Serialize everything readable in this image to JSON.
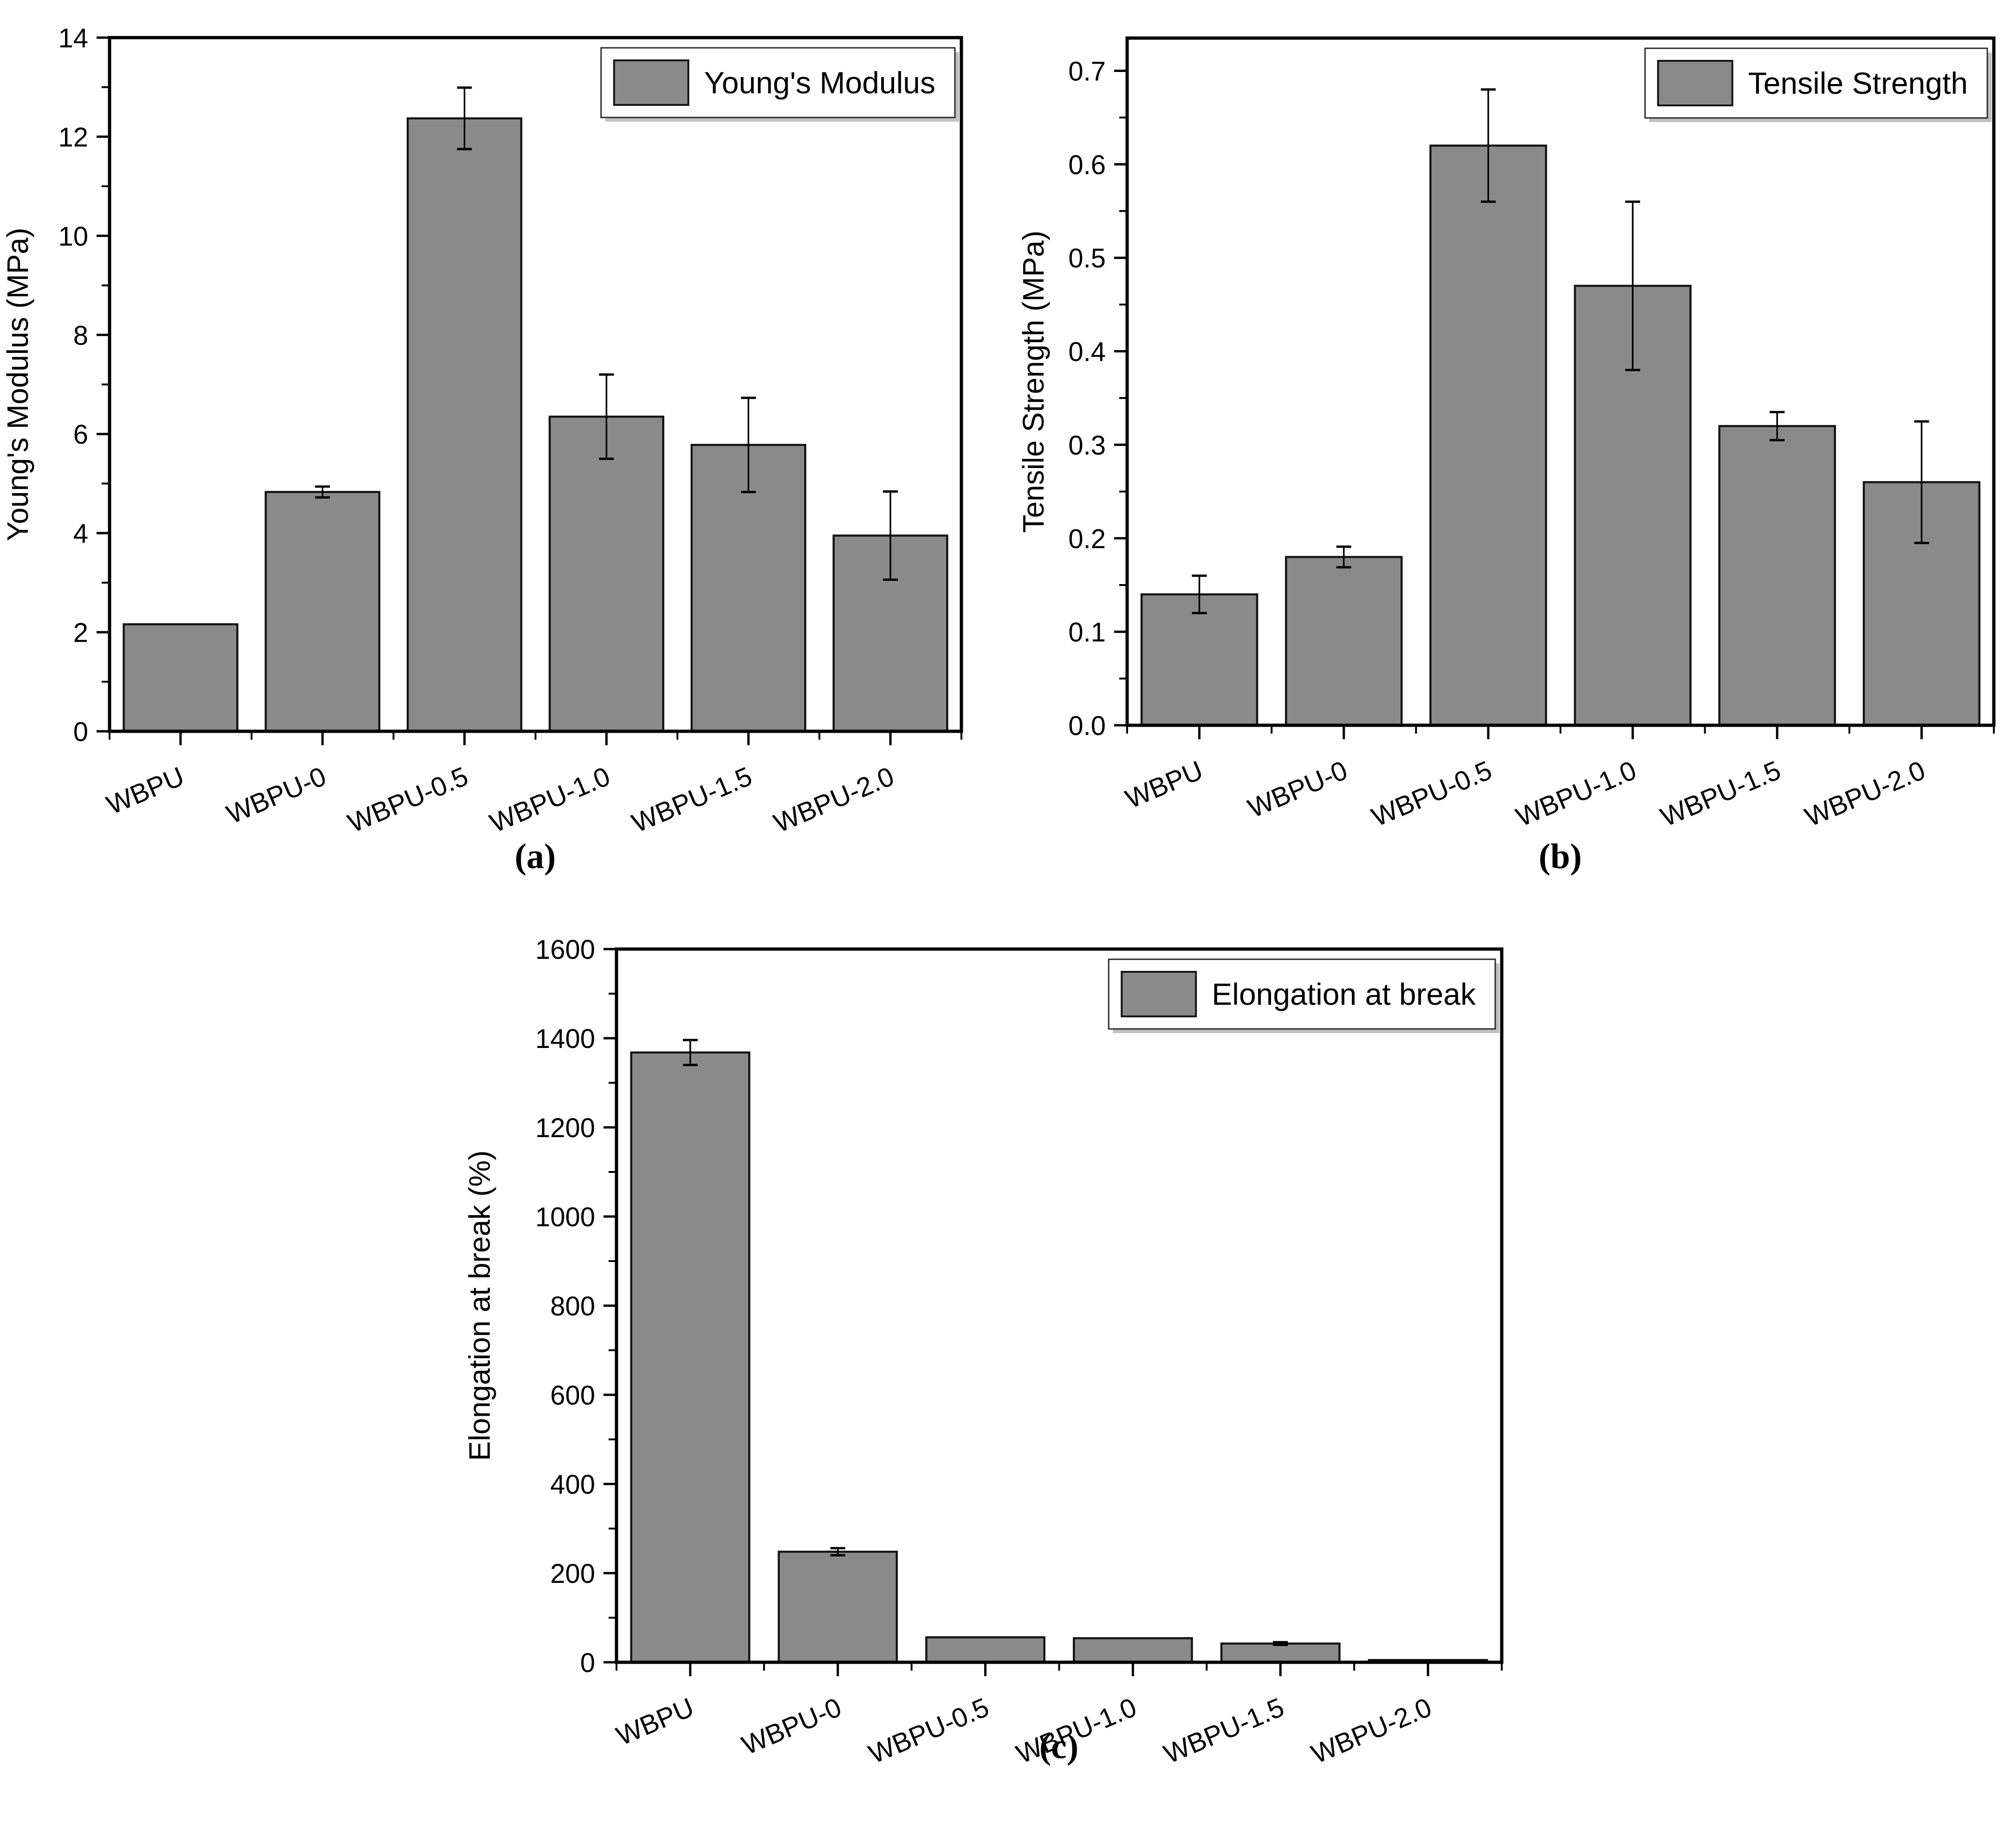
{
  "figure": {
    "background": "#ffffff",
    "colors": {
      "bar_fill": "#8a8a8a",
      "bar_stroke": "#141414",
      "axis": "#000000",
      "text": "#000000",
      "legend_border": "#2b2b2b",
      "legend_shadow": "#c0c0c0",
      "legend_background": "#ffffff"
    }
  },
  "chart_data": [
    {
      "type": "bar",
      "panel_label": "(a)",
      "legend_label": "Young's Modulus",
      "title": "",
      "xlabel": "",
      "ylabel": "Young's Modulus (MPa)",
      "categories": [
        "WBPU",
        "WBPU-0",
        "WBPU-0.5",
        "WBPU-1.0",
        "WBPU-1.5",
        "WBPU-2.0"
      ],
      "values": [
        2.16,
        4.83,
        12.37,
        6.35,
        5.78,
        3.95
      ],
      "errors": [
        0,
        0.11,
        0.62,
        0.85,
        0.95,
        0.89
      ],
      "ylim": [
        0,
        14
      ],
      "ytick_step": 2,
      "yminor_step": 1,
      "ytick_labels": [
        "0",
        "2",
        "4",
        "6",
        "8",
        "10",
        "12",
        "14"
      ],
      "legend_position": "top-right",
      "grid": false
    },
    {
      "type": "bar",
      "panel_label": "(b)",
      "legend_label": "Tensile Strength",
      "title": "",
      "xlabel": "",
      "ylabel": "Tensile Strength (MPa)",
      "categories": [
        "WBPU",
        "WBPU-0",
        "WBPU-0.5",
        "WBPU-1.0",
        "WBPU-1.5",
        "WBPU-2.0"
      ],
      "values": [
        0.14,
        0.18,
        0.62,
        0.47,
        0.32,
        0.26
      ],
      "errors": [
        0.02,
        0.011,
        0.06,
        0.09,
        0.015,
        0.065
      ],
      "ylim": [
        0,
        0.735
      ],
      "ytick_step": 0.1,
      "yminor_step": 0.05,
      "ytick_labels": [
        "0.0",
        "0.1",
        "0.2",
        "0.3",
        "0.4",
        "0.5",
        "0.6",
        "0.7"
      ],
      "legend_position": "top-right",
      "grid": false
    },
    {
      "type": "bar",
      "panel_label": "(c)",
      "legend_label": "Elongation at break",
      "title": "",
      "xlabel": "",
      "ylabel": "Elongation at break (%)",
      "categories": [
        "WBPU",
        "WBPU-0",
        "WBPU-0.5",
        "WBPU-1.0",
        "WBPU-1.5",
        "WBPU-2.0"
      ],
      "values": [
        1368,
        248,
        56,
        54,
        42,
        5
      ],
      "errors": [
        28,
        8,
        0,
        0,
        3,
        0
      ],
      "ylim": [
        0,
        1600
      ],
      "ytick_step": 200,
      "yminor_step": 100,
      "ytick_labels": [
        "0",
        "200",
        "400",
        "600",
        "800",
        "1000",
        "1200",
        "1400",
        "1600"
      ],
      "legend_position": "top-right",
      "grid": false
    }
  ]
}
